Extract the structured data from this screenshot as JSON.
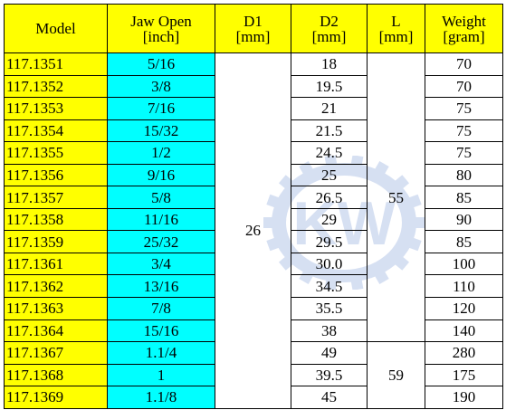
{
  "table": {
    "headers": [
      {
        "lines": [
          "Model"
        ]
      },
      {
        "lines": [
          "Jaw Open",
          "[inch]"
        ]
      },
      {
        "lines": [
          "D1",
          "[mm]"
        ]
      },
      {
        "lines": [
          "D2",
          "[mm]"
        ]
      },
      {
        "lines": [
          "L",
          "[mm]"
        ]
      },
      {
        "lines": [
          "Weight",
          "[gram]"
        ]
      }
    ],
    "rows": [
      {
        "model": "117.1351",
        "jaw": "5/16",
        "d2": "18",
        "weight": "70"
      },
      {
        "model": "117.1352",
        "jaw": "3/8",
        "d2": "19.5",
        "weight": "70"
      },
      {
        "model": "117.1353",
        "jaw": "7/16",
        "d2": "21",
        "weight": "75"
      },
      {
        "model": "117.1354",
        "jaw": "15/32",
        "d2": "21.5",
        "weight": "75"
      },
      {
        "model": "117.1355",
        "jaw": "1/2",
        "d2": "24.5",
        "weight": "75"
      },
      {
        "model": "117.1356",
        "jaw": "9/16",
        "d2": "25",
        "weight": "80"
      },
      {
        "model": "117.1357",
        "jaw": "5/8",
        "d2": "26.5",
        "weight": "85"
      },
      {
        "model": "117.1358",
        "jaw": "11/16",
        "d2": "29",
        "weight": "90"
      },
      {
        "model": "117.1359",
        "jaw": "25/32",
        "d2": "29.5",
        "weight": "85"
      },
      {
        "model": "117.1361",
        "jaw": "3/4",
        "d2": "30.0",
        "weight": "100"
      },
      {
        "model": "117.1362",
        "jaw": "13/16",
        "d2": "34.5",
        "weight": "110"
      },
      {
        "model": "117.1363",
        "jaw": "7/8",
        "d2": "35.5",
        "weight": "120"
      },
      {
        "model": "117.1364",
        "jaw": "15/16",
        "d2": "38",
        "weight": "140"
      },
      {
        "model": "117.1367",
        "jaw": "1.1/4",
        "d2": "49",
        "weight": "280"
      },
      {
        "model": "117.1368",
        "jaw": "1",
        "d2": "39.5",
        "weight": "175"
      },
      {
        "model": "117.1369",
        "jaw": "1.1/8",
        "d2": "45",
        "weight": "190"
      }
    ],
    "d1_merged": "26",
    "l_groups": [
      {
        "value": "55",
        "rows": 13
      },
      {
        "value": "59",
        "rows": 3
      }
    ]
  },
  "colors": {
    "header_bg": "#ffff00",
    "model_bg": "#ffff00",
    "jaw_bg": "#00ffff",
    "watermark": "#4a74c9"
  },
  "watermark": {
    "icon": "gear-logo-icon",
    "letters": "KW"
  }
}
